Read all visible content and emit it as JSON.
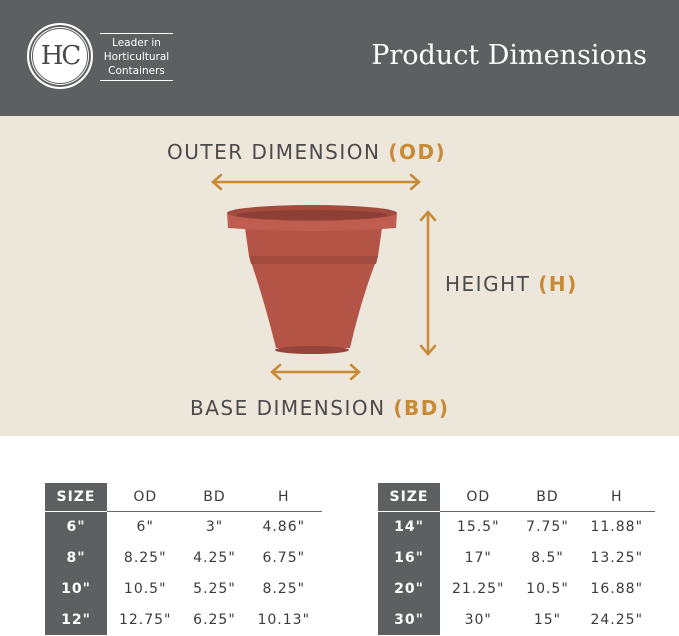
{
  "header": {
    "logo_text": "HC",
    "tagline": [
      "Leader in",
      "Horticultural",
      "Containers"
    ],
    "title": "Product Dimensions"
  },
  "diagram": {
    "outer": {
      "text": "OUTER DIMENSION ",
      "abbr": "(OD)"
    },
    "height": {
      "text": "HEIGHT ",
      "abbr": "(H)"
    },
    "base": {
      "text": "BASE DIMENSION ",
      "abbr": "(BD)"
    },
    "colors": {
      "accent": "#c88a35",
      "pot": "#b5574a"
    }
  },
  "tables": {
    "headers": [
      "SIZE",
      "OD",
      "BD",
      "H"
    ],
    "left": [
      [
        "6\"",
        "6\"",
        "3\"",
        "4.86\""
      ],
      [
        "8\"",
        "8.25\"",
        "4.25\"",
        "6.75\""
      ],
      [
        "10\"",
        "10.5\"",
        "5.25\"",
        "8.25\""
      ],
      [
        "12\"",
        "12.75\"",
        "6.25\"",
        "10.13\""
      ]
    ],
    "right": [
      [
        "14\"",
        "15.5\"",
        "7.75\"",
        "11.88\""
      ],
      [
        "16\"",
        "17\"",
        "8.5\"",
        "13.25\""
      ],
      [
        "20\"",
        "21.25\"",
        "10.5\"",
        "16.88\""
      ],
      [
        "30\"",
        "30\"",
        "15\"",
        "24.25\""
      ]
    ]
  }
}
